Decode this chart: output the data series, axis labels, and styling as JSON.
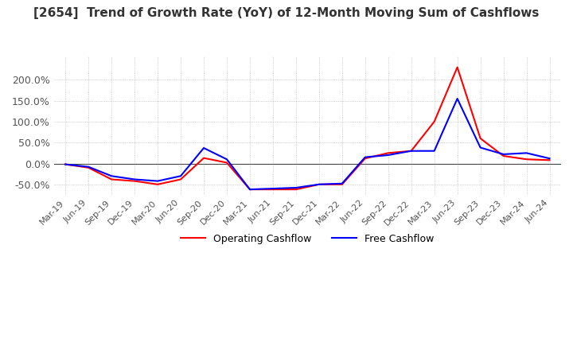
{
  "title": "[2654]  Trend of Growth Rate (YoY) of 12-Month Moving Sum of Cashflows",
  "x_labels": [
    "Mar-19",
    "Jun-19",
    "Sep-19",
    "Dec-19",
    "Mar-20",
    "Jun-20",
    "Sep-20",
    "Dec-20",
    "Mar-21",
    "Jun-21",
    "Sep-21",
    "Dec-21",
    "Mar-22",
    "Jun-22",
    "Sep-22",
    "Dec-22",
    "Mar-23",
    "Jun-23",
    "Sep-23",
    "Dec-23",
    "Mar-24",
    "Jun-24"
  ],
  "operating_cashflow": [
    -0.02,
    -0.1,
    -0.38,
    -0.42,
    -0.5,
    -0.38,
    0.13,
    0.02,
    -0.62,
    -0.62,
    -0.62,
    -0.5,
    -0.5,
    0.12,
    0.25,
    0.3,
    1.0,
    2.3,
    0.6,
    0.18,
    0.1,
    0.08
  ],
  "free_cashflow": [
    -0.02,
    -0.08,
    -0.3,
    -0.38,
    -0.42,
    -0.3,
    0.37,
    0.1,
    -0.62,
    -0.6,
    -0.58,
    -0.5,
    -0.48,
    0.15,
    0.2,
    0.3,
    0.3,
    1.55,
    0.38,
    0.22,
    0.25,
    0.12
  ],
  "operating_color": "#ff0000",
  "free_color": "#0000ff",
  "ylim": [
    -0.75,
    2.55
  ],
  "yticks": [
    -0.5,
    0.0,
    0.5,
    1.0,
    1.5,
    2.0
  ],
  "background_color": "#ffffff",
  "grid_color": "#aaaaaa",
  "title_color": "#333333",
  "legend_labels": [
    "Operating Cashflow",
    "Free Cashflow"
  ]
}
